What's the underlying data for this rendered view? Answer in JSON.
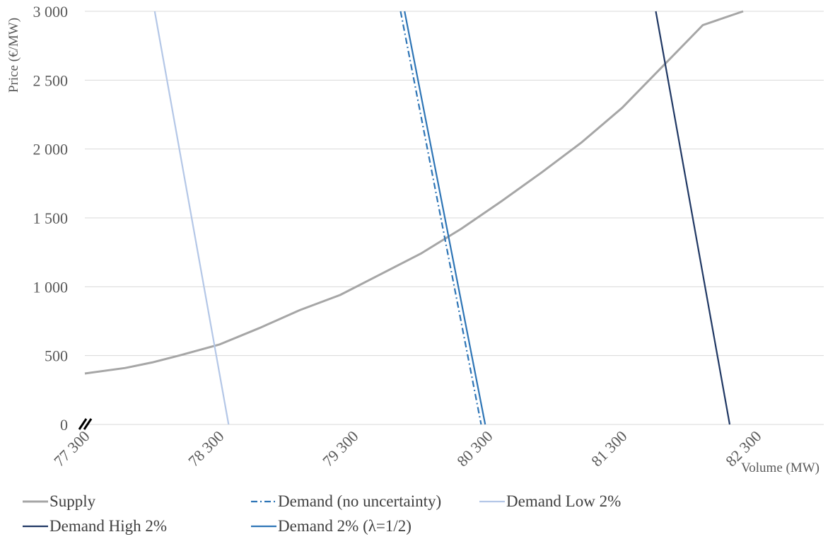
{
  "chart_data": {
    "type": "line",
    "title": "",
    "xlabel": "Volume (MW)",
    "ylabel": "Price (€/MW)",
    "xlim": [
      77300,
      82800
    ],
    "ylim": [
      0,
      3000
    ],
    "x_ticks": [
      {
        "value": 77300,
        "label": "77 300"
      },
      {
        "value": 78300,
        "label": "78 300"
      },
      {
        "value": 79300,
        "label": "79 300"
      },
      {
        "value": 80300,
        "label": "80 300"
      },
      {
        "value": 81300,
        "label": "81 300"
      },
      {
        "value": 82300,
        "label": "82 300"
      }
    ],
    "y_ticks": [
      {
        "value": 0,
        "label": "0"
      },
      {
        "value": 500,
        "label": "500"
      },
      {
        "value": 1000,
        "label": "1 000"
      },
      {
        "value": 1500,
        "label": "1 500"
      },
      {
        "value": 2000,
        "label": "2 000"
      },
      {
        "value": 2500,
        "label": "2 500"
      },
      {
        "value": 3000,
        "label": "3 000"
      }
    ],
    "grid": "horizontal",
    "axis_break": "x-axis origin",
    "legend_position": "bottom",
    "series": [
      {
        "name": "Supply",
        "color": "#a6a6a6",
        "style": "solid",
        "points": [
          [
            77300,
            370
          ],
          [
            77600,
            410
          ],
          [
            77800,
            450
          ],
          [
            78000,
            500
          ],
          [
            78300,
            580
          ],
          [
            78600,
            700
          ],
          [
            78900,
            830
          ],
          [
            79200,
            940
          ],
          [
            79500,
            1090
          ],
          [
            79800,
            1240
          ],
          [
            80100,
            1420
          ],
          [
            80400,
            1620
          ],
          [
            80700,
            1830
          ],
          [
            81000,
            2050
          ],
          [
            81300,
            2300
          ],
          [
            81600,
            2600
          ],
          [
            81900,
            2900
          ],
          [
            82200,
            3000
          ]
        ]
      },
      {
        "name": "Demand (no uncertainty)",
        "color": "#2e75b6",
        "style": "dashdot",
        "points": [
          [
            79650,
            3000
          ],
          [
            80250,
            0
          ]
        ]
      },
      {
        "name": "Demand Low 2%",
        "color": "#b4c7e7",
        "style": "solid",
        "points": [
          [
            77820,
            3000
          ],
          [
            78370,
            0
          ]
        ]
      },
      {
        "name": "Demand High 2%",
        "color": "#203864",
        "style": "solid",
        "points": [
          [
            81550,
            3000
          ],
          [
            82100,
            0
          ]
        ]
      },
      {
        "name": "Demand 2% (λ=1/2)",
        "color": "#2e75b6",
        "style": "solid",
        "points": [
          [
            79680,
            3000
          ],
          [
            80280,
            0
          ]
        ]
      }
    ]
  }
}
